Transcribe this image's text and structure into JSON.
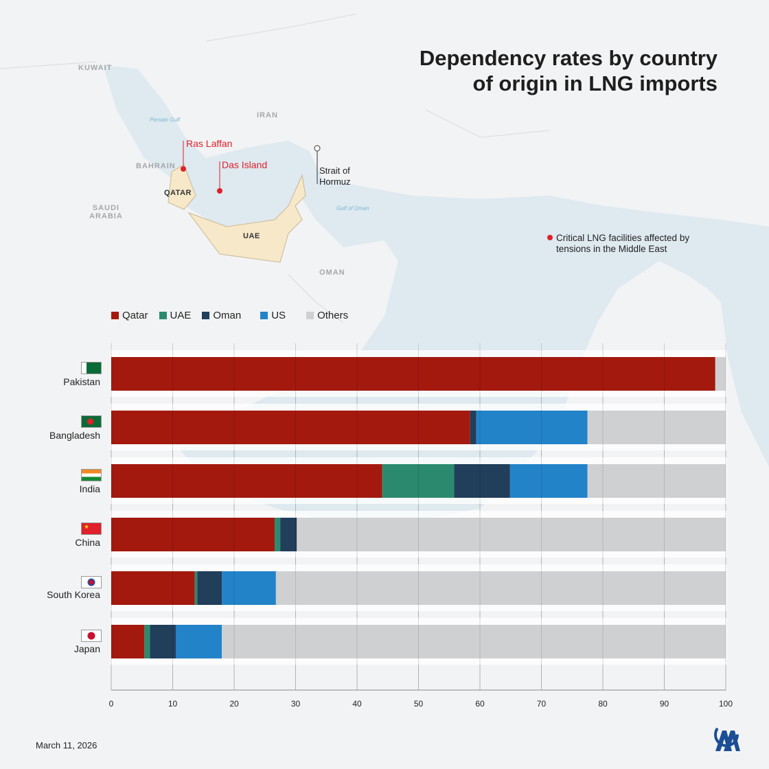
{
  "title_lines": [
    "Dependency rates by country",
    "of origin in LNG imports"
  ],
  "map": {
    "labels": {
      "kuwait": "KUWAIT",
      "iran": "IRAN",
      "bahrain": "BAHRAIN",
      "qatar": "QATAR",
      "saudi_arabia": "SAUDI\nARABIA",
      "uae": "UAE",
      "oman": "OMAN",
      "persian_gulf": "Persian Gulf",
      "gulf_of_oman": "Gulf of Oman"
    },
    "facilities": [
      "Ras Laffan",
      "Das Island"
    ],
    "strait": "Strait of\nHormuz",
    "legend_note": "Critical LNG facilities affected by\ntensions in the Middle East"
  },
  "colors": {
    "Qatar": "#a3190e",
    "UAE": "#2b8a6e",
    "Oman": "#213e5a",
    "US": "#2283c9",
    "Others": "#cfd0d2",
    "facility": "#e0202a"
  },
  "chart_data": {
    "type": "bar",
    "orientation": "horizontal",
    "stacked": true,
    "title": "Dependency rates by country of origin in LNG imports",
    "categories": [
      "Pakistan",
      "Bangladesh",
      "India",
      "China",
      "South Korea",
      "Japan"
    ],
    "series": [
      {
        "name": "Qatar",
        "values": [
          98.3,
          58.4,
          44.1,
          26.6,
          13.6,
          5.4
        ]
      },
      {
        "name": "UAE",
        "values": [
          0,
          0,
          11.7,
          0.9,
          0.4,
          0.9
        ]
      },
      {
        "name": "Oman",
        "values": [
          0,
          1.0,
          9.1,
          2.7,
          4.0,
          4.2
        ]
      },
      {
        "name": "US",
        "values": [
          0,
          18.1,
          12.6,
          0,
          8.8,
          7.5
        ]
      },
      {
        "name": "Others",
        "values": [
          1.7,
          22.5,
          22.5,
          69.8,
          73.2,
          82.0
        ]
      }
    ],
    "xlim": [
      0,
      100
    ],
    "xticks": [
      "0",
      "10",
      "20",
      "30",
      "40",
      "50",
      "60",
      "70",
      "80",
      "90",
      "100"
    ],
    "grid": true,
    "legend_position": "top-left"
  },
  "date": "March 11, 2026"
}
